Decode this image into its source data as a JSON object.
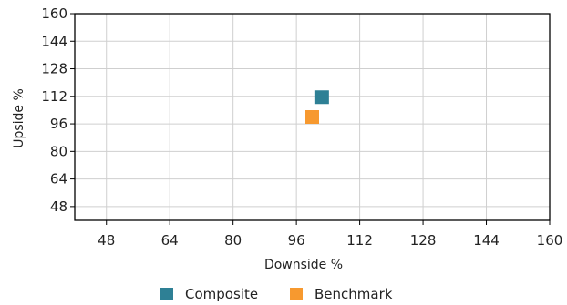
{
  "chart_data": {
    "type": "scatter",
    "title": "",
    "xlabel": "Downside %",
    "ylabel": "Upside %",
    "xlim": [
      40,
      160
    ],
    "ylim": [
      40,
      160
    ],
    "xticks": [
      48,
      64,
      80,
      96,
      112,
      128,
      144,
      160
    ],
    "yticks": [
      48,
      64,
      80,
      96,
      112,
      128,
      144,
      160
    ],
    "grid": true,
    "legend_position": "bottom",
    "series": [
      {
        "name": "Composite",
        "color": "#2e8095",
        "marker": "square",
        "points": [
          {
            "x": 102.5,
            "y": 111.5
          }
        ]
      },
      {
        "name": "Benchmark",
        "color": "#f7992f",
        "marker": "square",
        "points": [
          {
            "x": 100,
            "y": 100
          }
        ]
      }
    ]
  }
}
